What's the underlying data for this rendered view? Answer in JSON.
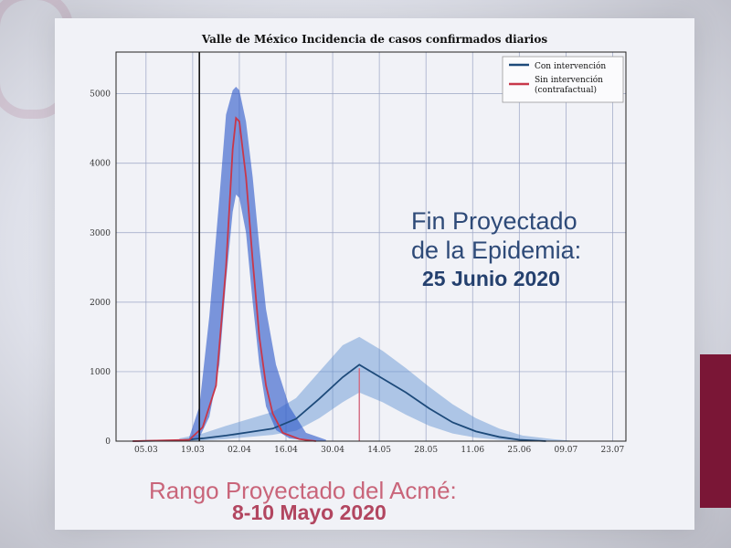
{
  "chart_data": {
    "type": "area",
    "title": "Valle de México Incidencia de casos confirmados diarios",
    "xlabel": "",
    "ylabel": "",
    "x_ticks": [
      "05.03",
      "19.03",
      "02.04",
      "16.04",
      "30.04",
      "14.05",
      "28.05",
      "11.06",
      "25.06",
      "09.07",
      "23.07"
    ],
    "y_ticks": [
      0,
      1000,
      2000,
      3000,
      4000,
      5000
    ],
    "ylim": [
      0,
      5600
    ],
    "grid": true,
    "legend_position": "top-right",
    "series": [
      {
        "name": "Con intervención",
        "color": "#1d4a7a",
        "x": [
          "2020-03-01",
          "2020-03-15",
          "2020-03-22",
          "2020-03-29",
          "2020-04-05",
          "2020-04-12",
          "2020-04-19",
          "2020-04-26",
          "2020-05-03",
          "2020-05-08",
          "2020-05-15",
          "2020-05-22",
          "2020-05-29",
          "2020-06-05",
          "2020-06-12",
          "2020-06-19",
          "2020-06-25",
          "2020-07-03"
        ],
        "values": [
          0,
          10,
          40,
          80,
          130,
          180,
          320,
          610,
          920,
          1100,
          900,
          700,
          470,
          270,
          140,
          60,
          20,
          0
        ]
      },
      {
        "name": "Sin intervención\n(contrafactual)",
        "color": "#c8374a",
        "x": [
          "2020-03-01",
          "2020-03-18",
          "2020-03-22",
          "2020-03-26",
          "2020-03-29",
          "2020-03-31",
          "2020-04-01",
          "2020-04-02",
          "2020-04-04",
          "2020-04-06",
          "2020-04-08",
          "2020-04-10",
          "2020-04-12",
          "2020-04-15",
          "2020-04-20",
          "2020-04-25"
        ],
        "values": [
          0,
          20,
          200,
          800,
          2500,
          4200,
          4650,
          4600,
          3800,
          2600,
          1500,
          800,
          400,
          120,
          30,
          0
        ]
      }
    ],
    "bands": [
      {
        "name": "Con intervención (intervalo)",
        "color": "#5b8ed1",
        "x": [
          "2020-03-15",
          "2020-03-22",
          "2020-03-29",
          "2020-04-05",
          "2020-04-12",
          "2020-04-19",
          "2020-04-26",
          "2020-05-03",
          "2020-05-08",
          "2020-05-15",
          "2020-05-22",
          "2020-05-29",
          "2020-06-05",
          "2020-06-12",
          "2020-06-19",
          "2020-06-26",
          "2020-07-05",
          "2020-07-12"
        ],
        "lower": [
          0,
          10,
          30,
          60,
          90,
          150,
          330,
          560,
          700,
          560,
          380,
          220,
          110,
          50,
          20,
          5,
          0,
          0
        ],
        "upper": [
          40,
          110,
          220,
          320,
          420,
          620,
          1000,
          1380,
          1500,
          1300,
          1050,
          780,
          530,
          330,
          180,
          80,
          30,
          0
        ]
      },
      {
        "name": "Sin intervención (intervalo)",
        "color": "#2a55c8",
        "x": [
          "2020-03-18",
          "2020-03-21",
          "2020-03-24",
          "2020-03-27",
          "2020-03-29",
          "2020-03-31",
          "2020-04-01",
          "2020-04-02",
          "2020-04-04",
          "2020-04-06",
          "2020-04-08",
          "2020-04-10",
          "2020-04-13",
          "2020-04-17",
          "2020-04-22",
          "2020-04-28"
        ],
        "lower": [
          0,
          50,
          350,
          1100,
          2300,
          3300,
          3550,
          3500,
          3000,
          2000,
          1100,
          500,
          160,
          40,
          10,
          0
        ],
        "upper": [
          60,
          500,
          1800,
          3500,
          4700,
          5050,
          5100,
          5050,
          4600,
          3800,
          2800,
          1900,
          1100,
          500,
          120,
          20
        ]
      }
    ],
    "marker_lines": [
      {
        "x": "2020-03-21",
        "color": "#111"
      },
      {
        "x": "2020-05-08",
        "color": "#d46a80"
      }
    ]
  },
  "overlay": {
    "fin_line1": "Fin Proyectado",
    "fin_line2": "de la Epidemia:",
    "fin_date": "25 Junio 2020",
    "acme_line1": "Rango Proyectado del Acmé:",
    "acme_date": "8-10 Mayo 2020"
  },
  "colors": {
    "accent": "#7a1636",
    "overlay_blue": "#2e4a78",
    "overlay_red": "#c9657a"
  }
}
